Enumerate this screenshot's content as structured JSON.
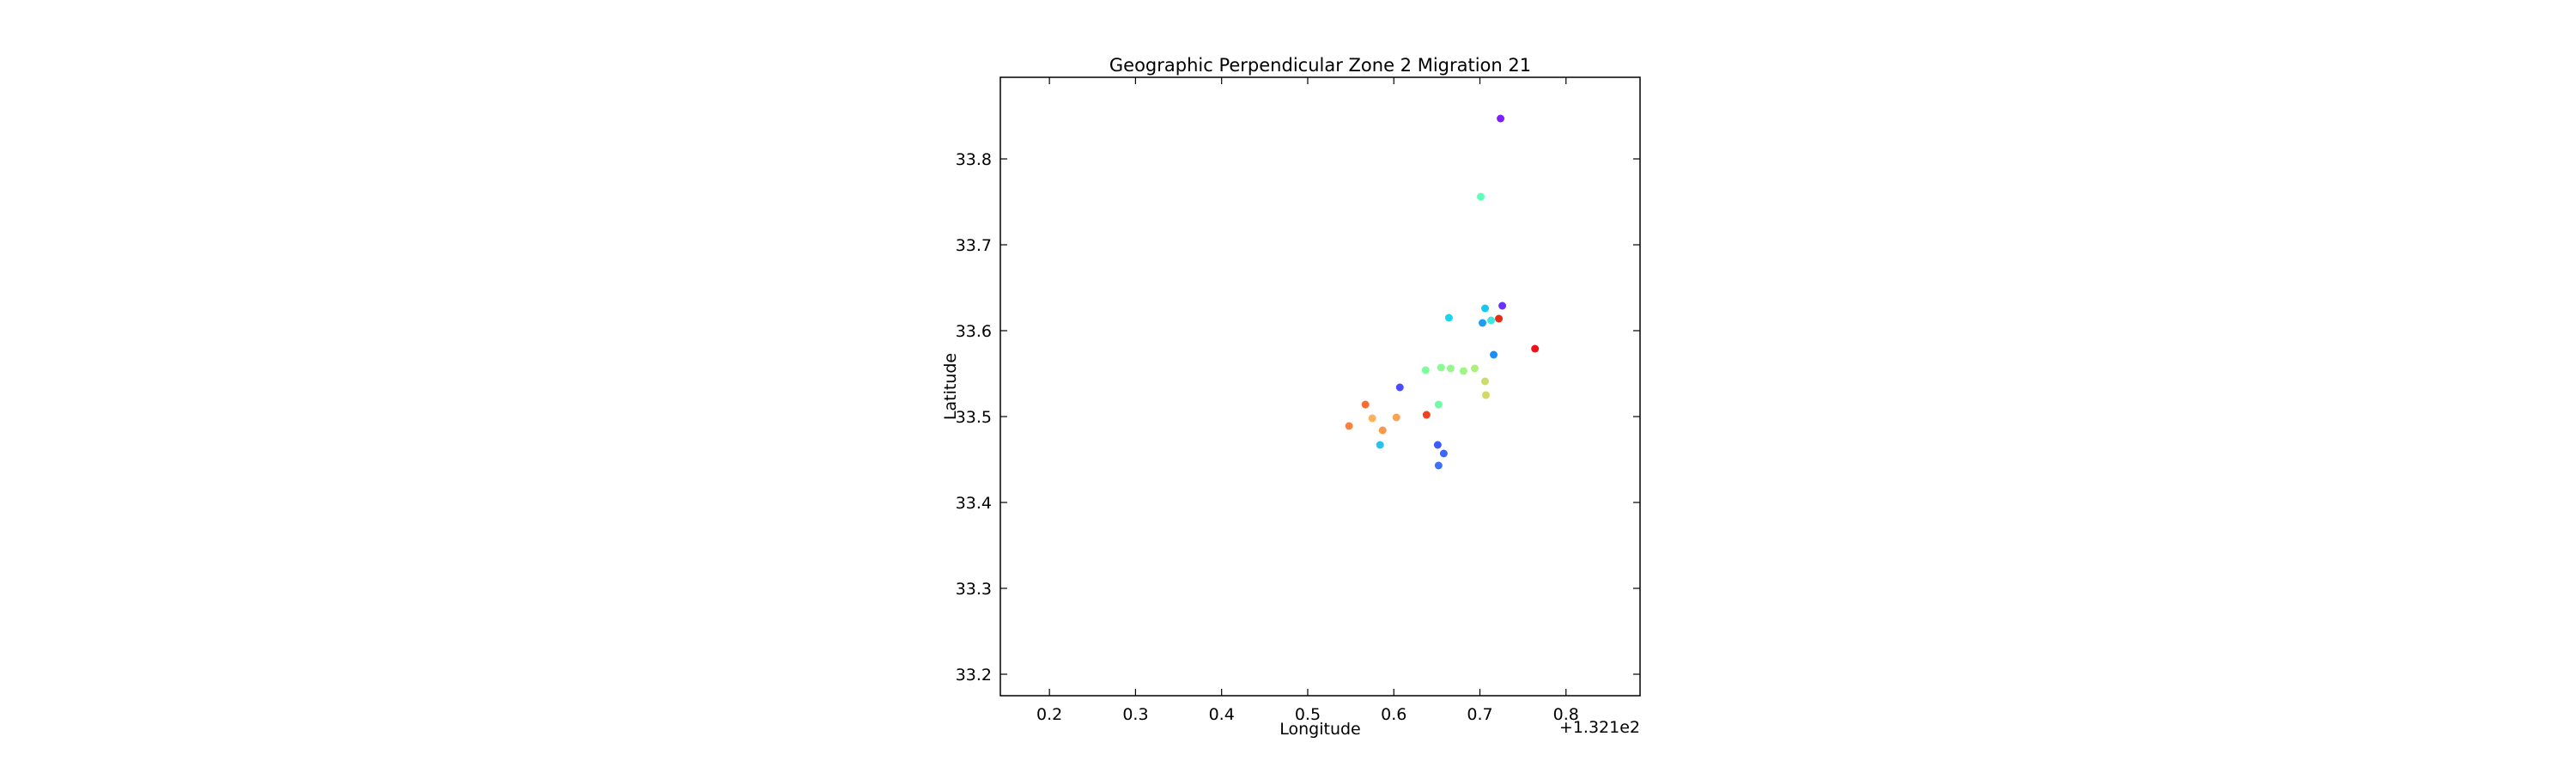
{
  "chart_data": {
    "type": "scatter",
    "title": "Geographic Perpendicular Zone 2 Migration 21",
    "xlabel": "Longitude",
    "ylabel": "Latitude",
    "x_offset_label": "+1.321e2",
    "xlim": [
      0.143,
      0.886
    ],
    "ylim": [
      33.175,
      33.895
    ],
    "xticks": [
      0.2,
      0.3,
      0.4,
      0.5,
      0.6,
      0.7,
      0.8
    ],
    "xtick_labels": [
      "0.2",
      "0.3",
      "0.4",
      "0.5",
      "0.6",
      "0.7",
      "0.8"
    ],
    "yticks": [
      33.2,
      33.3,
      33.4,
      33.5,
      33.6,
      33.7,
      33.8
    ],
    "ytick_labels": [
      "33.2",
      "33.3",
      "33.4",
      "33.5",
      "33.6",
      "33.7",
      "33.8"
    ],
    "grid": false,
    "legend": "none",
    "points": [
      {
        "x": 0.724,
        "y": 33.847,
        "color": "#7f1fff"
      },
      {
        "x": 0.701,
        "y": 33.756,
        "color": "#5effb6"
      },
      {
        "x": 0.664,
        "y": 33.615,
        "color": "#16d5ec"
      },
      {
        "x": 0.706,
        "y": 33.626,
        "color": "#18c9ef"
      },
      {
        "x": 0.726,
        "y": 33.629,
        "color": "#6a32fe"
      },
      {
        "x": 0.703,
        "y": 33.609,
        "color": "#1d9ef4"
      },
      {
        "x": 0.713,
        "y": 33.612,
        "color": "#3ee6e0"
      },
      {
        "x": 0.722,
        "y": 33.614,
        "color": "#ea2a14"
      },
      {
        "x": 0.764,
        "y": 33.579,
        "color": "#f01018"
      },
      {
        "x": 0.716,
        "y": 33.572,
        "color": "#1a8ef6"
      },
      {
        "x": 0.637,
        "y": 33.554,
        "color": "#7dfd9c"
      },
      {
        "x": 0.655,
        "y": 33.557,
        "color": "#8afa94"
      },
      {
        "x": 0.666,
        "y": 33.556,
        "color": "#94f68c"
      },
      {
        "x": 0.681,
        "y": 33.553,
        "color": "#9ff485"
      },
      {
        "x": 0.694,
        "y": 33.556,
        "color": "#aef07c"
      },
      {
        "x": 0.706,
        "y": 33.541,
        "color": "#c8dd6e"
      },
      {
        "x": 0.707,
        "y": 33.525,
        "color": "#d4d867"
      },
      {
        "x": 0.607,
        "y": 33.534,
        "color": "#4a4dfd"
      },
      {
        "x": 0.652,
        "y": 33.514,
        "color": "#6efca4"
      },
      {
        "x": 0.638,
        "y": 33.502,
        "color": "#f5401f"
      },
      {
        "x": 0.567,
        "y": 33.514,
        "color": "#fb6a30"
      },
      {
        "x": 0.575,
        "y": 33.498,
        "color": "#fbb25a"
      },
      {
        "x": 0.603,
        "y": 33.499,
        "color": "#f9a452"
      },
      {
        "x": 0.548,
        "y": 33.489,
        "color": "#fc8040"
      },
      {
        "x": 0.587,
        "y": 33.484,
        "color": "#fa984a"
      },
      {
        "x": 0.584,
        "y": 33.467,
        "color": "#27c3ee"
      },
      {
        "x": 0.651,
        "y": 33.467,
        "color": "#3f5cfb"
      },
      {
        "x": 0.658,
        "y": 33.457,
        "color": "#3c66fb"
      },
      {
        "x": 0.652,
        "y": 33.443,
        "color": "#3d71fa"
      }
    ]
  }
}
